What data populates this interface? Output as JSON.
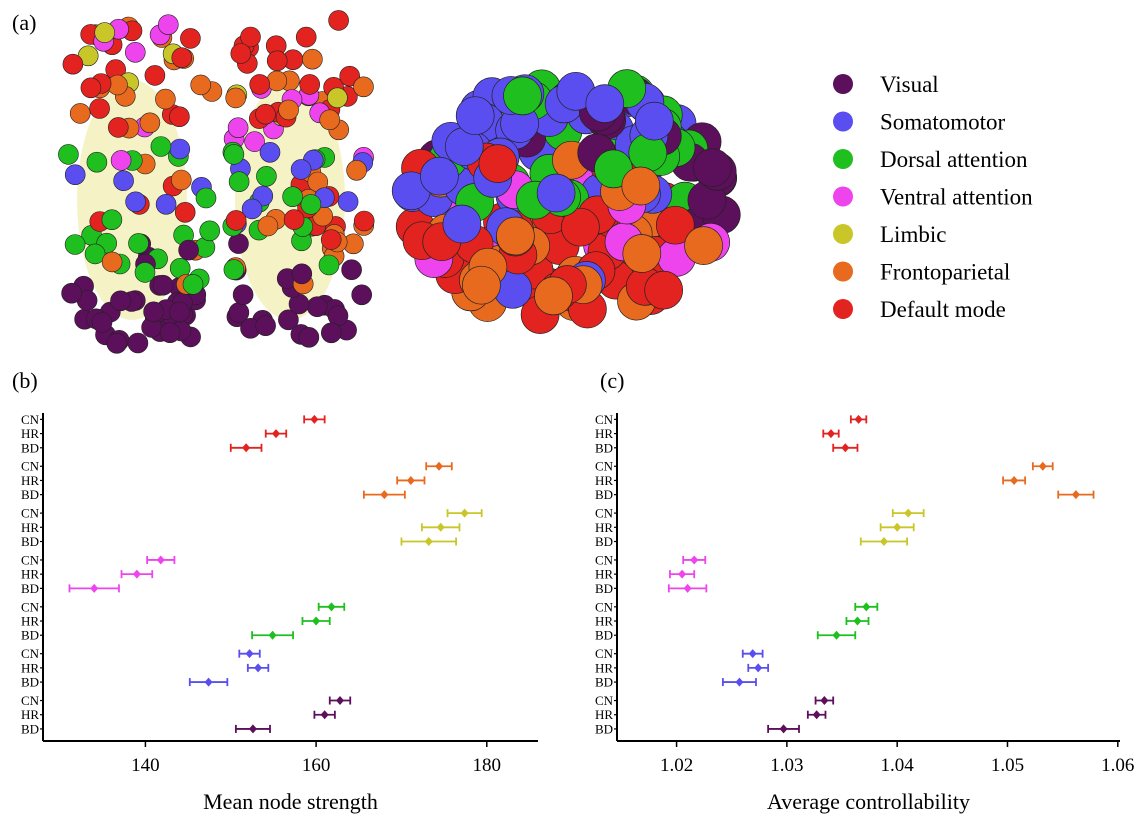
{
  "panel_labels": {
    "a": "(a)",
    "b": "(b)",
    "c": "(c)"
  },
  "networks": [
    {
      "key": "visual",
      "label": "Visual",
      "color": "#5c0f5a"
    },
    {
      "key": "somatomotor",
      "label": "Somatomotor",
      "color": "#5b4ef0"
    },
    {
      "key": "dorsal",
      "label": "Dorsal attention",
      "color": "#1fbf1f"
    },
    {
      "key": "ventral",
      "label": "Ventral attention",
      "color": "#ee44ee"
    },
    {
      "key": "limbic",
      "label": "Limbic",
      "color": "#c9c62a"
    },
    {
      "key": "frontoparietal",
      "label": "Frontoparietal",
      "color": "#e86a1e"
    },
    {
      "key": "default",
      "label": "Default mode",
      "color": "#e2231f"
    }
  ],
  "brain_images": [
    {
      "view": "axial-top",
      "type": "node-cloud"
    },
    {
      "view": "oblique-3d",
      "type": "node-cloud"
    }
  ],
  "chart_data": [
    {
      "type": "scatter",
      "variant": "dot-plot-with-error-bars",
      "xlabel": "Mean node strength",
      "xlim": [
        128,
        186
      ],
      "xticks": [
        140,
        160,
        180
      ],
      "group_labels": [
        "CN",
        "HR",
        "BD"
      ],
      "grid": false,
      "series": [
        {
          "network": "default",
          "points": [
            {
              "group": "CN",
              "mean": 159.8,
              "err": 1.2
            },
            {
              "group": "HR",
              "mean": 155.3,
              "err": 1.2
            },
            {
              "group": "BD",
              "mean": 151.8,
              "err": 1.8
            }
          ]
        },
        {
          "network": "frontoparietal",
          "points": [
            {
              "group": "CN",
              "mean": 174.4,
              "err": 1.5
            },
            {
              "group": "HR",
              "mean": 171.1,
              "err": 1.6
            },
            {
              "group": "BD",
              "mean": 168.0,
              "err": 2.4
            }
          ]
        },
        {
          "network": "limbic",
          "points": [
            {
              "group": "CN",
              "mean": 177.4,
              "err": 2.0
            },
            {
              "group": "HR",
              "mean": 174.6,
              "err": 2.2
            },
            {
              "group": "BD",
              "mean": 173.2,
              "err": 3.2
            }
          ]
        },
        {
          "network": "ventral",
          "points": [
            {
              "group": "CN",
              "mean": 141.8,
              "err": 1.6
            },
            {
              "group": "HR",
              "mean": 139.0,
              "err": 1.8
            },
            {
              "group": "BD",
              "mean": 134.0,
              "err": 2.9
            }
          ]
        },
        {
          "network": "dorsal",
          "points": [
            {
              "group": "CN",
              "mean": 161.8,
              "err": 1.5
            },
            {
              "group": "HR",
              "mean": 160.0,
              "err": 1.6
            },
            {
              "group": "BD",
              "mean": 154.9,
              "err": 2.4
            }
          ]
        },
        {
          "network": "somatomotor",
          "points": [
            {
              "group": "CN",
              "mean": 152.2,
              "err": 1.2
            },
            {
              "group": "HR",
              "mean": 153.2,
              "err": 1.2
            },
            {
              "group": "BD",
              "mean": 147.4,
              "err": 2.2
            }
          ]
        },
        {
          "network": "visual",
          "points": [
            {
              "group": "CN",
              "mean": 162.8,
              "err": 1.2
            },
            {
              "group": "HR",
              "mean": 161.0,
              "err": 1.2
            },
            {
              "group": "BD",
              "mean": 152.6,
              "err": 2.0
            }
          ]
        }
      ]
    },
    {
      "type": "scatter",
      "variant": "dot-plot-with-error-bars",
      "xlabel": "Average controllability",
      "xlim": [
        1.0146,
        1.0602
      ],
      "xticks": [
        1.02,
        1.03,
        1.04,
        1.05,
        1.06
      ],
      "group_labels": [
        "CN",
        "HR",
        "BD"
      ],
      "grid": false,
      "series": [
        {
          "network": "default",
          "points": [
            {
              "group": "CN",
              "mean": 1.0365,
              "err": 0.0007
            },
            {
              "group": "HR",
              "mean": 1.034,
              "err": 0.0007
            },
            {
              "group": "BD",
              "mean": 1.0353,
              "err": 0.0011
            }
          ]
        },
        {
          "network": "frontoparietal",
          "points": [
            {
              "group": "CN",
              "mean": 1.0532,
              "err": 0.0009
            },
            {
              "group": "HR",
              "mean": 1.0506,
              "err": 0.001
            },
            {
              "group": "BD",
              "mean": 1.0562,
              "err": 0.0016
            }
          ]
        },
        {
          "network": "limbic",
          "points": [
            {
              "group": "CN",
              "mean": 1.041,
              "err": 0.0014
            },
            {
              "group": "HR",
              "mean": 1.04,
              "err": 0.0015
            },
            {
              "group": "BD",
              "mean": 1.0388,
              "err": 0.0021
            }
          ]
        },
        {
          "network": "ventral",
          "points": [
            {
              "group": "CN",
              "mean": 1.0216,
              "err": 0.001
            },
            {
              "group": "HR",
              "mean": 1.0205,
              "err": 0.0011
            },
            {
              "group": "BD",
              "mean": 1.021,
              "err": 0.0017
            }
          ]
        },
        {
          "network": "dorsal",
          "points": [
            {
              "group": "CN",
              "mean": 1.0372,
              "err": 0.001
            },
            {
              "group": "HR",
              "mean": 1.0364,
              "err": 0.001
            },
            {
              "group": "BD",
              "mean": 1.0345,
              "err": 0.0017
            }
          ]
        },
        {
          "network": "somatomotor",
          "points": [
            {
              "group": "CN",
              "mean": 1.0269,
              "err": 0.0009
            },
            {
              "group": "HR",
              "mean": 1.0274,
              "err": 0.0009
            },
            {
              "group": "BD",
              "mean": 1.0257,
              "err": 0.0015
            }
          ]
        },
        {
          "network": "visual",
          "points": [
            {
              "group": "CN",
              "mean": 1.0334,
              "err": 0.0008
            },
            {
              "group": "HR",
              "mean": 1.0327,
              "err": 0.0008
            },
            {
              "group": "BD",
              "mean": 1.0297,
              "err": 0.0014
            }
          ]
        }
      ]
    }
  ]
}
